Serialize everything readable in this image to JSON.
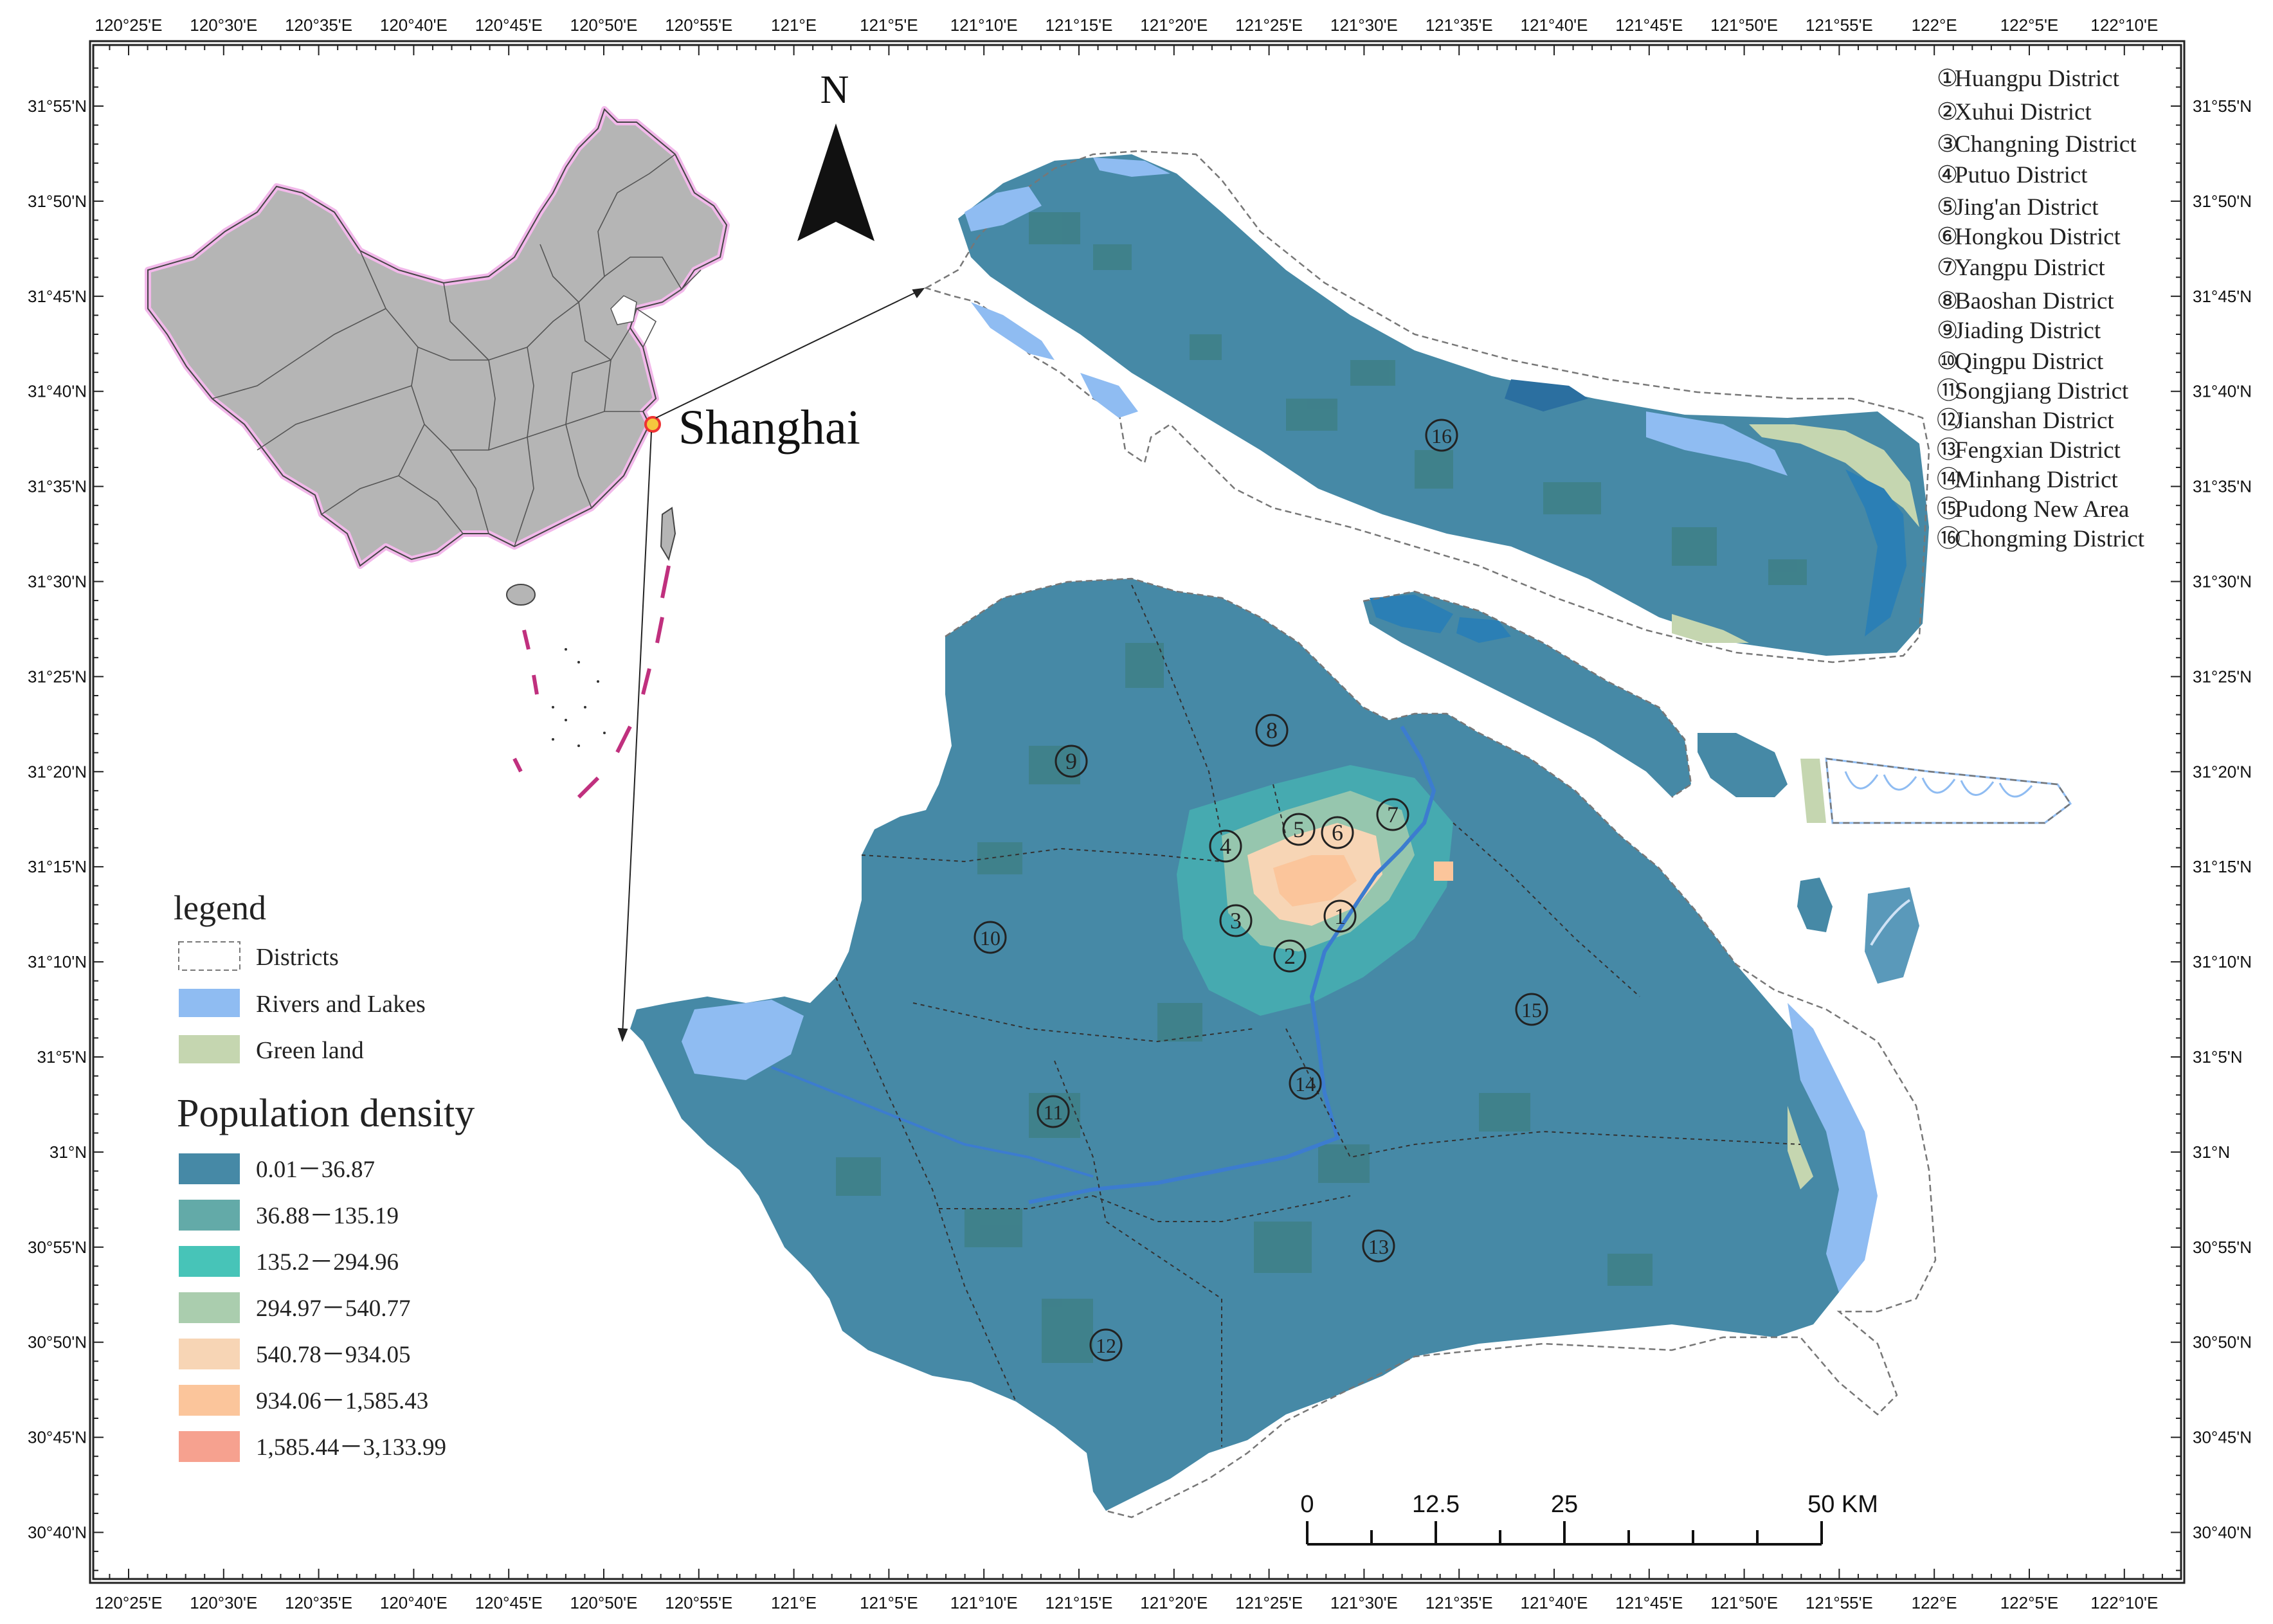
{
  "map": {
    "top_ticks": [
      "120°25'E",
      "120°30'E",
      "120°35'E",
      "120°40'E",
      "120°45'E",
      "120°50'E",
      "120°55'E",
      "121°E",
      "121°5'E",
      "121°10'E",
      "121°15'E",
      "121°20'E",
      "121°25'E",
      "121°30'E",
      "121°35'E",
      "121°40'E",
      "121°45'E",
      "121°50'E",
      "121°55'E",
      "122°E",
      "122°5'E",
      "122°10'E"
    ],
    "bottom_ticks": [
      "120°25'E",
      "120°30'E",
      "120°35'E",
      "120°40'E",
      "120°45'E",
      "120°50'E",
      "120°55'E",
      "121°E",
      "121°5'E",
      "121°10'E",
      "121°15'E",
      "121°20'E",
      "121°25'E",
      "121°30'E",
      "121°35'E",
      "121°40'E",
      "121°45'E",
      "121°50'E",
      "121°55'E",
      "122°E",
      "122°5'E",
      "122°10'E"
    ],
    "left_ticks": [
      "31°55'N",
      "31°50'N",
      "31°45'N",
      "31°40'N",
      "31°35'N",
      "31°30'N",
      "31°25'N",
      "31°20'N",
      "31°15'N",
      "31°10'N",
      "31°5'N",
      "31°N",
      "30°55'N",
      "30°50'N",
      "30°45'N",
      "30°40'N"
    ],
    "right_ticks": [
      "31°55'N",
      "31°50'N",
      "31°45'N",
      "31°40'N",
      "31°35'N",
      "31°30'N",
      "31°25'N",
      "31°20'N",
      "31°15'N",
      "31°10'N",
      "31°5'N",
      "31°N",
      "30°55'N",
      "30°50'N",
      "30°45'N",
      "30°40'N"
    ],
    "north_label": "N",
    "inset_label": "Shanghai"
  },
  "districts": [
    {
      "num": "①",
      "name": "Huangpu District"
    },
    {
      "num": "②",
      "name": "Xuhui District"
    },
    {
      "num": "③",
      "name": "Changning District"
    },
    {
      "num": "④",
      "name": "Putuo District"
    },
    {
      "num": "⑤",
      "name": "Jing'an District"
    },
    {
      "num": "⑥",
      "name": "Hongkou District"
    },
    {
      "num": "⑦",
      "name": "Yangpu District"
    },
    {
      "num": "⑧",
      "name": "Baoshan District"
    },
    {
      "num": "⑨",
      "name": "Jiading District"
    },
    {
      "num": "⑩",
      "name": "Qingpu District"
    },
    {
      "num": "⑪",
      "name": "Songjiang District"
    },
    {
      "num": "⑫",
      "name": "Jianshan District"
    },
    {
      "num": "⑬",
      "name": "Fengxian District"
    },
    {
      "num": "⑭",
      "name": "Minhang District"
    },
    {
      "num": "⑮",
      "name": "Pudong New Area"
    },
    {
      "num": "⑯",
      "name": "Chongming District"
    }
  ],
  "legend": {
    "title": "legend",
    "items": [
      {
        "label": "Districts",
        "color": "#ffffff"
      },
      {
        "label": "Rivers and Lakes",
        "color": "#8fbcf2"
      },
      {
        "label": "Green land",
        "color": "#c5d6b0"
      }
    ],
    "density_title": "Population density",
    "density_items": [
      {
        "label": "0.01－36.87",
        "color": "#4689a6"
      },
      {
        "label": "36.88－135.19",
        "color": "#63aaa8"
      },
      {
        "label": "135.2－294.96",
        "color": "#47c4b8"
      },
      {
        "label": "294.97－540.77",
        "color": "#aacdae"
      },
      {
        "label": "540.78－934.05",
        "color": "#f7d5b5"
      },
      {
        "label": "934.06－1,585.43",
        "color": "#fbc59b"
      },
      {
        "label": "1,585.44－3,133.99",
        "color": "#f6a18f"
      }
    ]
  },
  "scale": {
    "labels": [
      "0",
      "12.5",
      "25",
      "50 KM"
    ]
  }
}
